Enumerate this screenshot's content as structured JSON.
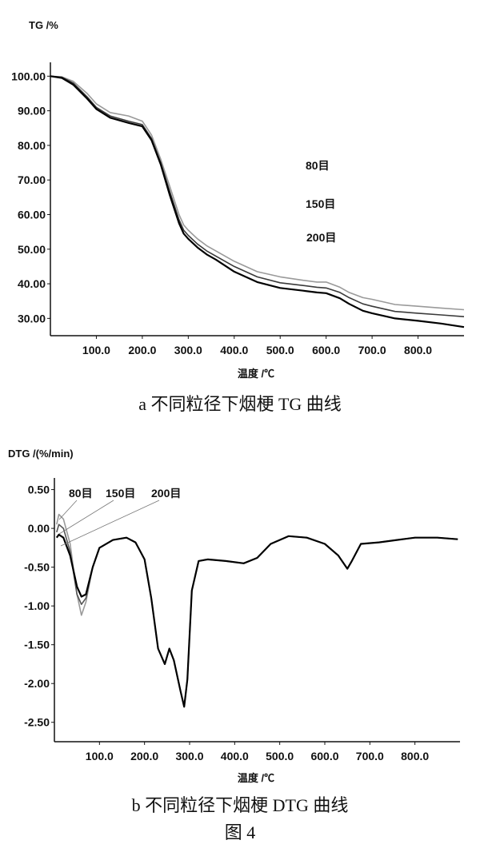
{
  "chart_data": [
    {
      "type": "line",
      "ylabel": "TG /%",
      "xlabel": "温度 /℃",
      "xlim": [
        0,
        900
      ],
      "ylim": [
        25,
        104
      ],
      "xticks": [
        "100.0",
        "200.0",
        "300.0",
        "400.0",
        "500.0",
        "600.0",
        "700.0",
        "800.0"
      ],
      "yticks": [
        "100.00",
        "90.00",
        "80.00",
        "70.00",
        "60.00",
        "50.00",
        "40.00",
        "30.00"
      ],
      "legend": [
        "80目",
        "150目",
        "200目"
      ],
      "series": [
        {
          "name": "80目",
          "color": "#9a9a9a",
          "x": [
            0,
            25,
            50,
            80,
            100,
            130,
            170,
            200,
            220,
            240,
            260,
            280,
            290,
            300,
            320,
            340,
            360,
            400,
            450,
            500,
            550,
            580,
            600,
            630,
            650,
            680,
            700,
            750,
            800,
            850,
            900
          ],
          "y": [
            100.0,
            99.8,
            98.5,
            95.0,
            92.0,
            89.5,
            88.5,
            87.0,
            83.0,
            76.0,
            68.0,
            60.0,
            57.0,
            55.5,
            53.0,
            51.0,
            49.5,
            46.5,
            43.5,
            42.0,
            41.0,
            40.5,
            40.5,
            39.0,
            37.5,
            36.0,
            35.5,
            34.0,
            33.5,
            33.0,
            32.5
          ]
        },
        {
          "name": "150目",
          "color": "#3a3a3a",
          "x": [
            0,
            25,
            50,
            80,
            100,
            130,
            170,
            200,
            220,
            240,
            260,
            280,
            290,
            300,
            320,
            340,
            360,
            400,
            450,
            500,
            550,
            580,
            600,
            630,
            650,
            680,
            700,
            750,
            800,
            850,
            900
          ],
          "y": [
            100.0,
            99.7,
            98.0,
            94.0,
            91.0,
            88.5,
            87.0,
            86.0,
            82.0,
            75.0,
            66.5,
            58.5,
            55.5,
            54.0,
            51.5,
            49.5,
            48.0,
            45.0,
            42.0,
            40.3,
            39.5,
            39.0,
            38.8,
            37.5,
            36.0,
            34.2,
            33.5,
            32.0,
            31.5,
            31.0,
            30.5
          ]
        },
        {
          "name": "200目",
          "color": "#000000",
          "x": [
            0,
            25,
            50,
            80,
            100,
            130,
            170,
            200,
            220,
            240,
            260,
            280,
            290,
            300,
            320,
            340,
            360,
            400,
            450,
            500,
            550,
            580,
            600,
            630,
            650,
            680,
            700,
            750,
            800,
            850,
            900
          ],
          "y": [
            100.0,
            99.5,
            97.5,
            93.5,
            90.5,
            88.0,
            86.5,
            85.5,
            81.5,
            74.5,
            65.5,
            57.5,
            54.5,
            53.0,
            50.5,
            48.5,
            47.0,
            43.5,
            40.5,
            38.8,
            38.0,
            37.5,
            37.3,
            35.8,
            34.2,
            32.2,
            31.5,
            30.0,
            29.3,
            28.5,
            27.5
          ]
        }
      ]
    },
    {
      "type": "line",
      "ylabel": "DTG /(%/min)",
      "xlabel": "温度 /℃",
      "xlim": [
        0,
        900
      ],
      "ylim": [
        -2.75,
        0.65
      ],
      "xticks": [
        "100.0",
        "200.0",
        "300.0",
        "400.0",
        "500.0",
        "600.0",
        "700.0",
        "800.0"
      ],
      "yticks": [
        "0.50",
        "0.00",
        "-0.50",
        "-1.00",
        "-1.50",
        "-2.00",
        "-2.50"
      ],
      "legend": [
        "80目",
        "150目",
        "200目"
      ],
      "series": [
        {
          "name": "80目",
          "color": "#9a9a9a",
          "x": [
            5,
            10,
            20,
            35,
            50,
            60,
            70,
            85,
            100,
            130,
            160,
            180,
            200,
            215,
            230,
            245,
            255,
            265,
            280,
            288,
            295,
            305,
            320,
            340,
            380,
            420,
            450,
            480,
            520,
            560,
            600,
            630,
            650,
            660,
            680,
            720,
            760,
            800,
            850,
            895
          ],
          "y": [
            0.05,
            0.18,
            0.12,
            -0.2,
            -0.85,
            -1.12,
            -0.95,
            -0.5,
            -0.25,
            -0.15,
            -0.12,
            -0.18,
            -0.4,
            -0.9,
            -1.55,
            -1.75,
            -1.55,
            -1.7,
            -2.1,
            -2.3,
            -1.95,
            -0.8,
            -0.42,
            -0.4,
            -0.42,
            -0.45,
            -0.38,
            -0.2,
            -0.1,
            -0.12,
            -0.2,
            -0.35,
            -0.52,
            -0.42,
            -0.2,
            -0.18,
            -0.15,
            -0.12,
            -0.12,
            -0.14
          ]
        },
        {
          "name": "150目",
          "color": "#555555",
          "x": [
            5,
            10,
            20,
            35,
            50,
            60,
            70,
            85,
            100,
            130,
            160,
            180,
            200,
            215,
            230,
            245,
            255,
            265,
            280,
            288,
            295,
            305,
            320,
            340,
            380,
            420,
            450,
            480,
            520,
            560,
            600,
            630,
            650,
            660,
            680,
            720,
            760,
            800,
            850,
            895
          ],
          "y": [
            -0.05,
            0.05,
            0.0,
            -0.3,
            -0.85,
            -0.98,
            -0.9,
            -0.5,
            -0.25,
            -0.15,
            -0.12,
            -0.18,
            -0.4,
            -0.9,
            -1.55,
            -1.75,
            -1.55,
            -1.7,
            -2.1,
            -2.3,
            -1.95,
            -0.8,
            -0.42,
            -0.4,
            -0.42,
            -0.45,
            -0.38,
            -0.2,
            -0.1,
            -0.12,
            -0.2,
            -0.35,
            -0.52,
            -0.42,
            -0.2,
            -0.18,
            -0.15,
            -0.12,
            -0.12,
            -0.14
          ]
        },
        {
          "name": "200目",
          "color": "#000000",
          "x": [
            5,
            10,
            20,
            35,
            50,
            60,
            70,
            85,
            100,
            130,
            160,
            180,
            200,
            215,
            230,
            245,
            255,
            265,
            280,
            288,
            295,
            305,
            320,
            340,
            380,
            420,
            450,
            480,
            520,
            560,
            600,
            630,
            650,
            660,
            680,
            720,
            760,
            800,
            850,
            895
          ],
          "y": [
            -0.12,
            -0.08,
            -0.12,
            -0.35,
            -0.75,
            -0.88,
            -0.85,
            -0.5,
            -0.25,
            -0.15,
            -0.12,
            -0.18,
            -0.4,
            -0.9,
            -1.55,
            -1.75,
            -1.55,
            -1.7,
            -2.1,
            -2.3,
            -1.95,
            -0.8,
            -0.42,
            -0.4,
            -0.42,
            -0.45,
            -0.38,
            -0.2,
            -0.1,
            -0.12,
            -0.2,
            -0.35,
            -0.52,
            -0.42,
            -0.2,
            -0.18,
            -0.15,
            -0.12,
            -0.12,
            -0.14
          ]
        }
      ]
    }
  ],
  "captions": {
    "a": "a  不同粒径下烟梗 TG 曲线",
    "b": "b  不同粒径下烟梗 DTG 曲线",
    "figure": "图 4"
  }
}
